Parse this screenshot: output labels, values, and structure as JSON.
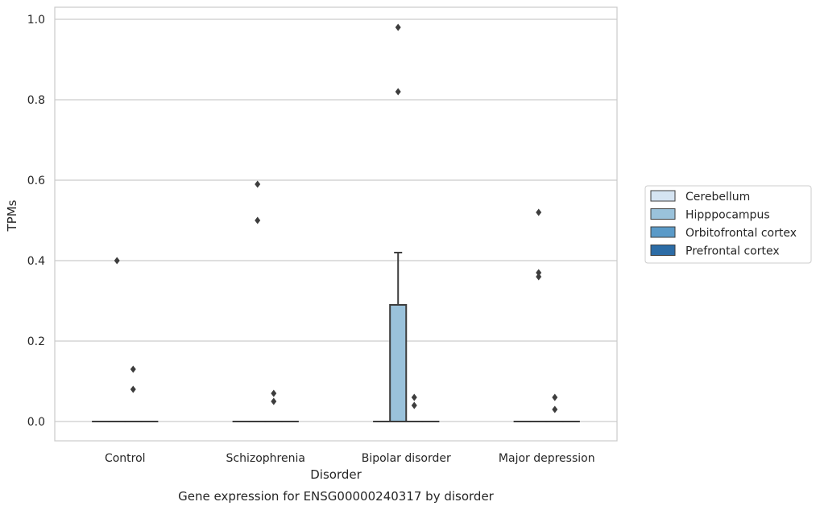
{
  "chart_data": {
    "type": "box",
    "ylabel": "TPMs",
    "xlabel": "Disorder",
    "caption": "Gene expression for ENSG00000240317 by disorder",
    "ylim": [
      -0.045,
      1.03
    ],
    "yticks": [
      0.0,
      0.2,
      0.4,
      0.6,
      0.8,
      1.0
    ],
    "ytick_labels": [
      "0.0",
      "0.2",
      "0.4",
      "0.6",
      "0.8",
      "1.0"
    ],
    "grid": "horizontal",
    "legend_position": "right",
    "categories": [
      "Control",
      "Schizophrenia",
      "Bipolar disorder",
      "Major depression"
    ],
    "series": [
      {
        "name": "Cerebellum",
        "color": "#d5e4f2",
        "boxes": [
          {
            "category": "Control",
            "q1": 0,
            "median": 0,
            "q3": 0,
            "whisker_low": 0,
            "whisker_high": 0,
            "outliers": []
          },
          {
            "category": "Schizophrenia",
            "q1": 0,
            "median": 0,
            "q3": 0,
            "whisker_low": 0,
            "whisker_high": 0,
            "outliers": []
          },
          {
            "category": "Bipolar disorder",
            "q1": 0,
            "median": 0,
            "q3": 0,
            "whisker_low": 0,
            "whisker_high": 0,
            "outliers": []
          },
          {
            "category": "Major depression",
            "q1": 0,
            "median": 0,
            "q3": 0,
            "whisker_low": 0,
            "whisker_high": 0,
            "outliers": []
          }
        ]
      },
      {
        "name": "Hipppocampus",
        "color": "#9ac2db",
        "boxes": [
          {
            "category": "Control",
            "q1": 0,
            "median": 0,
            "q3": 0,
            "whisker_low": 0,
            "whisker_high": 0,
            "outliers": [
              0.4
            ]
          },
          {
            "category": "Schizophrenia",
            "q1": 0,
            "median": 0,
            "q3": 0,
            "whisker_low": 0,
            "whisker_high": 0,
            "outliers": [
              0.59,
              0.5
            ]
          },
          {
            "category": "Bipolar disorder",
            "q1": 0,
            "median": 0,
            "q3": 0.29,
            "whisker_low": 0,
            "whisker_high": 0.42,
            "outliers": [
              0.98,
              0.82
            ]
          },
          {
            "category": "Major depression",
            "q1": 0,
            "median": 0,
            "q3": 0,
            "whisker_low": 0,
            "whisker_high": 0,
            "outliers": [
              0.52,
              0.37,
              0.36
            ]
          }
        ]
      },
      {
        "name": "Orbitofrontal cortex",
        "color": "#5a9ac8",
        "boxes": [
          {
            "category": "Control",
            "q1": 0,
            "median": 0,
            "q3": 0,
            "whisker_low": 0,
            "whisker_high": 0,
            "outliers": [
              0.13,
              0.08
            ]
          },
          {
            "category": "Schizophrenia",
            "q1": 0,
            "median": 0,
            "q3": 0,
            "whisker_low": 0,
            "whisker_high": 0,
            "outliers": [
              0.07,
              0.05
            ]
          },
          {
            "category": "Bipolar disorder",
            "q1": 0,
            "median": 0,
            "q3": 0,
            "whisker_low": 0,
            "whisker_high": 0,
            "outliers": [
              0.06,
              0.04
            ]
          },
          {
            "category": "Major depression",
            "q1": 0,
            "median": 0,
            "q3": 0,
            "whisker_low": 0,
            "whisker_high": 0,
            "outliers": [
              0.06,
              0.03
            ]
          }
        ]
      },
      {
        "name": "Prefrontal cortex",
        "color": "#2c6ca6",
        "boxes": [
          {
            "category": "Control",
            "q1": 0,
            "median": 0,
            "q3": 0,
            "whisker_low": 0,
            "whisker_high": 0,
            "outliers": []
          },
          {
            "category": "Schizophrenia",
            "q1": 0,
            "median": 0,
            "q3": 0,
            "whisker_low": 0,
            "whisker_high": 0,
            "outliers": []
          },
          {
            "category": "Bipolar disorder",
            "q1": 0,
            "median": 0,
            "q3": 0,
            "whisker_low": 0,
            "whisker_high": 0,
            "outliers": []
          },
          {
            "category": "Major depression",
            "q1": 0,
            "median": 0,
            "q3": 0,
            "whisker_low": 0,
            "whisker_high": 0,
            "outliers": []
          }
        ]
      }
    ]
  }
}
